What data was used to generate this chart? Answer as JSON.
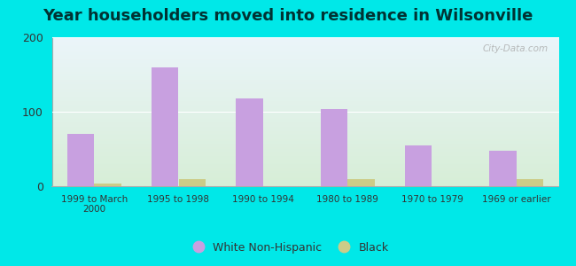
{
  "title": "Year householders moved into residence in Wilsonville",
  "categories": [
    "1999 to March\n2000",
    "1995 to 1998",
    "1990 to 1994",
    "1980 to 1989",
    "1970 to 1979",
    "1969 or earlier"
  ],
  "white_values": [
    70,
    160,
    118,
    104,
    55,
    48
  ],
  "black_values": [
    3,
    10,
    0,
    10,
    0,
    10
  ],
  "white_color": "#c8a0e0",
  "black_color": "#cccc88",
  "bar_width": 0.32,
  "ylim": [
    0,
    200
  ],
  "yticks": [
    0,
    100,
    200
  ],
  "bg_color": "#00e8e8",
  "title_fontsize": 13,
  "title_color": "#003333",
  "legend_labels": [
    "White Non-Hispanic",
    "Black"
  ],
  "watermark": "City-Data.com"
}
